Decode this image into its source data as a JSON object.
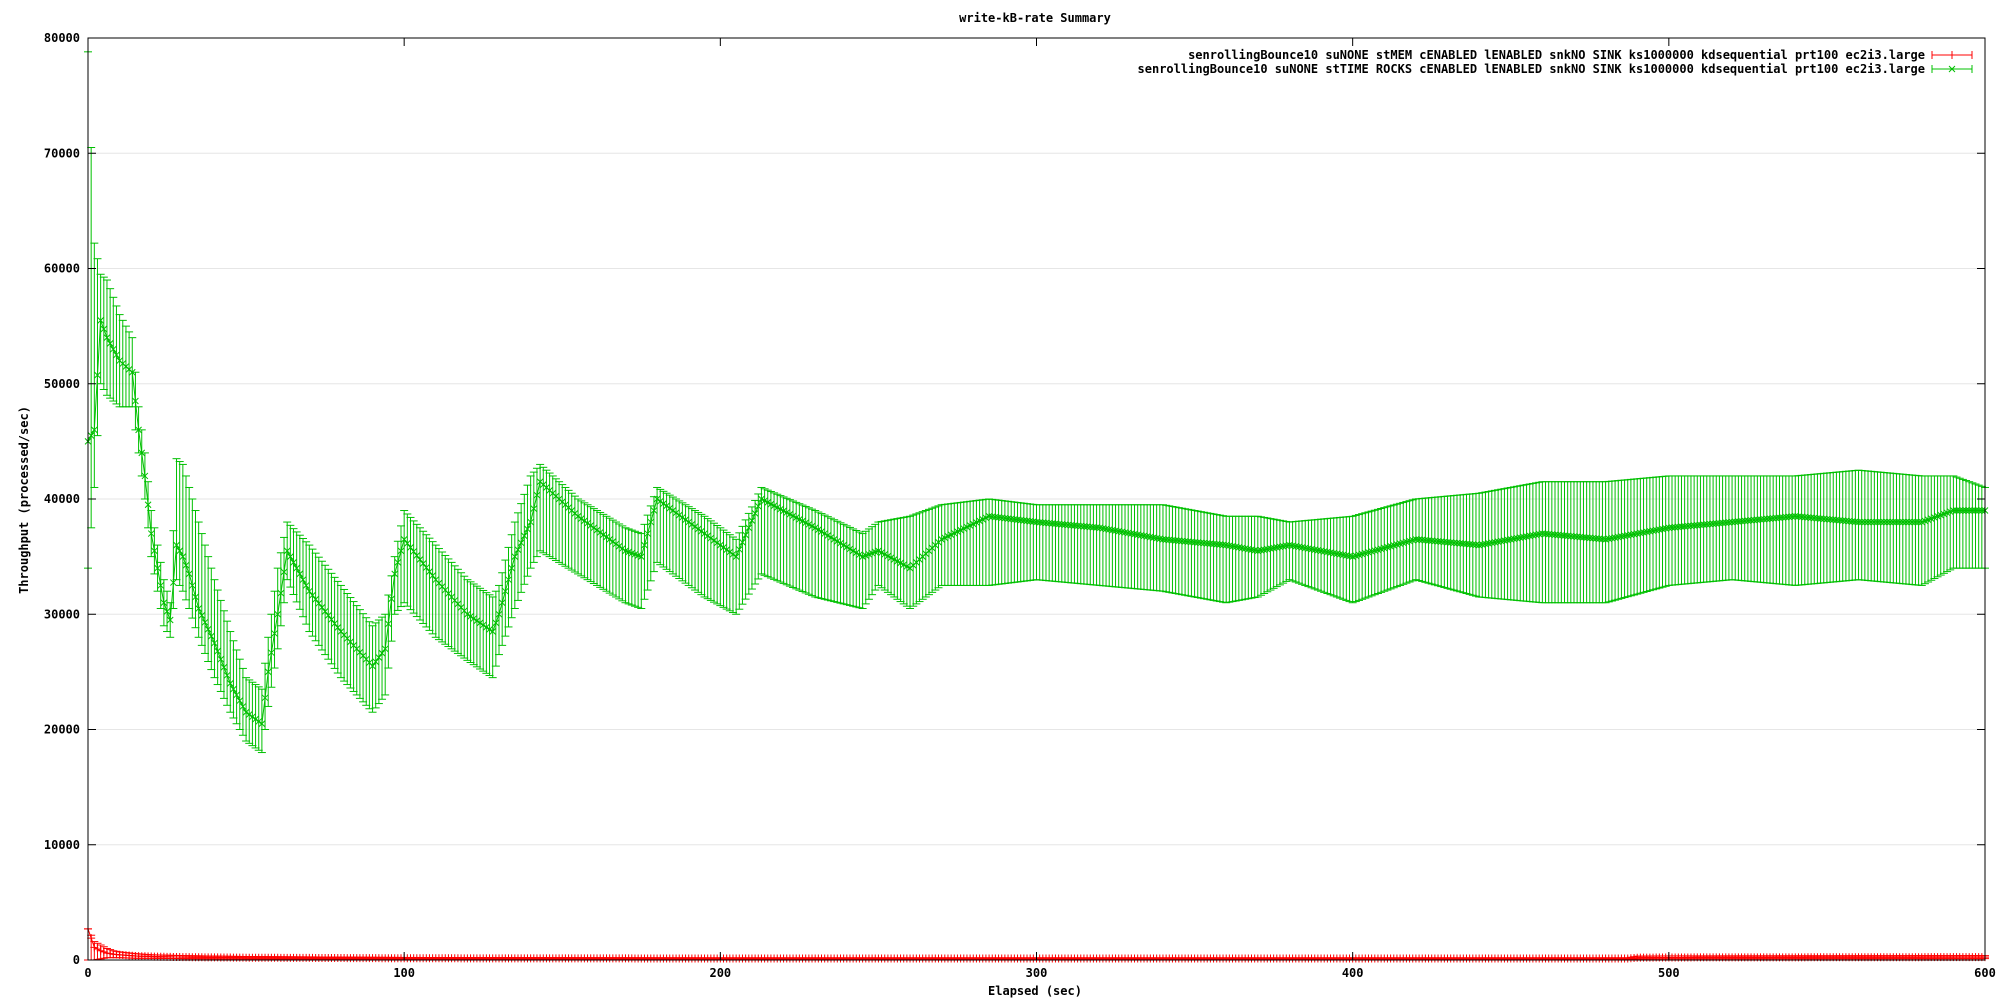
{
  "chart_data": {
    "type": "line",
    "title": "write-kB-rate Summary",
    "xlabel": "Elapsed (sec)",
    "ylabel": "Throughput (processed/sec)",
    "xlim": [
      0,
      600
    ],
    "ylim": [
      0,
      80000
    ],
    "xticks": [
      0,
      100,
      200,
      300,
      400,
      500,
      600
    ],
    "yticks": [
      0,
      10000,
      20000,
      30000,
      40000,
      50000,
      60000,
      70000,
      80000
    ],
    "grid": "y-major",
    "legend_position": "top-right",
    "series": [
      {
        "name": "senrollingBounce10 suNONE stMEM cENABLED lENABLED snkNO SINK ks1000000 kdsequential prt100 ec2i3.large",
        "color": "#ff0000",
        "marker": "+",
        "points": [
          [
            0,
            2700,
            0,
            2700
          ],
          [
            2,
            1100,
            0,
            1600
          ],
          [
            4,
            800,
            100,
            1300
          ],
          [
            6,
            600,
            200,
            1000
          ],
          [
            8,
            500,
            200,
            800
          ],
          [
            10,
            450,
            200,
            700
          ],
          [
            15,
            350,
            150,
            550
          ],
          [
            20,
            300,
            150,
            450
          ],
          [
            30,
            250,
            120,
            380
          ],
          [
            50,
            200,
            100,
            300
          ],
          [
            100,
            150,
            80,
            220
          ],
          [
            200,
            130,
            70,
            190
          ],
          [
            300,
            130,
            70,
            190
          ],
          [
            400,
            130,
            70,
            190
          ],
          [
            487,
            130,
            70,
            190
          ],
          [
            490,
            200,
            100,
            330
          ],
          [
            500,
            220,
            110,
            350
          ],
          [
            600,
            250,
            120,
            380
          ]
        ]
      },
      {
        "name": "senrollingBounce10 suNONE stTIME ROCKS cENABLED lENABLED snkNO SINK ks1000000 kdsequential prt100 ec2i3.large",
        "color": "#00c000",
        "marker": "x",
        "points": [
          [
            0,
            45000,
            34000,
            78800
          ],
          [
            2,
            46000,
            41000,
            62200
          ],
          [
            4,
            55500,
            50000,
            59500
          ],
          [
            6,
            54000,
            49000,
            59000
          ],
          [
            8,
            53000,
            48500,
            57500
          ],
          [
            10,
            52000,
            48000,
            56000
          ],
          [
            12,
            51500,
            48000,
            55000
          ],
          [
            14,
            51000,
            48000,
            54000
          ],
          [
            16,
            46000,
            44000,
            48000
          ],
          [
            18,
            42000,
            40000,
            44000
          ],
          [
            20,
            37000,
            35000,
            39000
          ],
          [
            22,
            34000,
            32000,
            36000
          ],
          [
            24,
            31000,
            29000,
            33000
          ],
          [
            26,
            29500,
            28000,
            31000
          ],
          [
            28,
            36000,
            33000,
            43500
          ],
          [
            30,
            35000,
            32000,
            43000
          ],
          [
            32,
            33500,
            30500,
            41000
          ],
          [
            35,
            30500,
            28000,
            38000
          ],
          [
            40,
            27500,
            24500,
            33000
          ],
          [
            45,
            24000,
            21500,
            28500
          ],
          [
            50,
            21500,
            19000,
            24500
          ],
          [
            55,
            20500,
            18000,
            23500
          ],
          [
            57,
            25000,
            22000,
            28000
          ],
          [
            60,
            30000,
            27000,
            34000
          ],
          [
            63,
            35500,
            33000,
            38000
          ],
          [
            70,
            32000,
            28500,
            36000
          ],
          [
            80,
            28500,
            24500,
            32500
          ],
          [
            90,
            25500,
            21500,
            29000
          ],
          [
            94,
            27000,
            23000,
            30000
          ],
          [
            97,
            33500,
            30000,
            35000
          ],
          [
            100,
            36500,
            31000,
            39000
          ],
          [
            110,
            33000,
            28000,
            36000
          ],
          [
            120,
            30000,
            26000,
            33000
          ],
          [
            128,
            28500,
            24500,
            31500
          ],
          [
            130,
            30000,
            26500,
            32500
          ],
          [
            135,
            35000,
            30500,
            38000
          ],
          [
            140,
            38000,
            34000,
            42000
          ],
          [
            143,
            41500,
            35500,
            43000
          ],
          [
            155,
            38500,
            33500,
            40000
          ],
          [
            170,
            35500,
            31000,
            37500
          ],
          [
            175,
            35000,
            30500,
            37000
          ],
          [
            180,
            40000,
            34500,
            41000
          ],
          [
            195,
            37000,
            31500,
            38500
          ],
          [
            205,
            35000,
            30000,
            36500
          ],
          [
            213,
            40000,
            33500,
            41000
          ],
          [
            230,
            37500,
            31500,
            39000
          ],
          [
            245,
            35000,
            30500,
            37000
          ],
          [
            250,
            35500,
            32500,
            38000
          ],
          [
            260,
            34000,
            30500,
            38500
          ],
          [
            270,
            36500,
            32500,
            39500
          ],
          [
            285,
            38500,
            32500,
            40000
          ],
          [
            300,
            38000,
            33000,
            39500
          ],
          [
            320,
            37500,
            32500,
            39500
          ],
          [
            340,
            36500,
            32000,
            39500
          ],
          [
            360,
            36000,
            31000,
            38500
          ],
          [
            370,
            35500,
            31500,
            38500
          ],
          [
            380,
            36000,
            33000,
            38000
          ],
          [
            400,
            35000,
            31000,
            38500
          ],
          [
            420,
            36500,
            33000,
            40000
          ],
          [
            440,
            36000,
            31500,
            40500
          ],
          [
            460,
            37000,
            31000,
            41500
          ],
          [
            480,
            36500,
            31000,
            41500
          ],
          [
            500,
            37500,
            32500,
            42000
          ],
          [
            520,
            38000,
            33000,
            42000
          ],
          [
            540,
            38500,
            32500,
            42000
          ],
          [
            560,
            38000,
            33000,
            42500
          ],
          [
            580,
            38000,
            32500,
            42000
          ],
          [
            590,
            39000,
            34000,
            42000
          ],
          [
            600,
            39000,
            34000,
            41000
          ]
        ]
      }
    ]
  }
}
